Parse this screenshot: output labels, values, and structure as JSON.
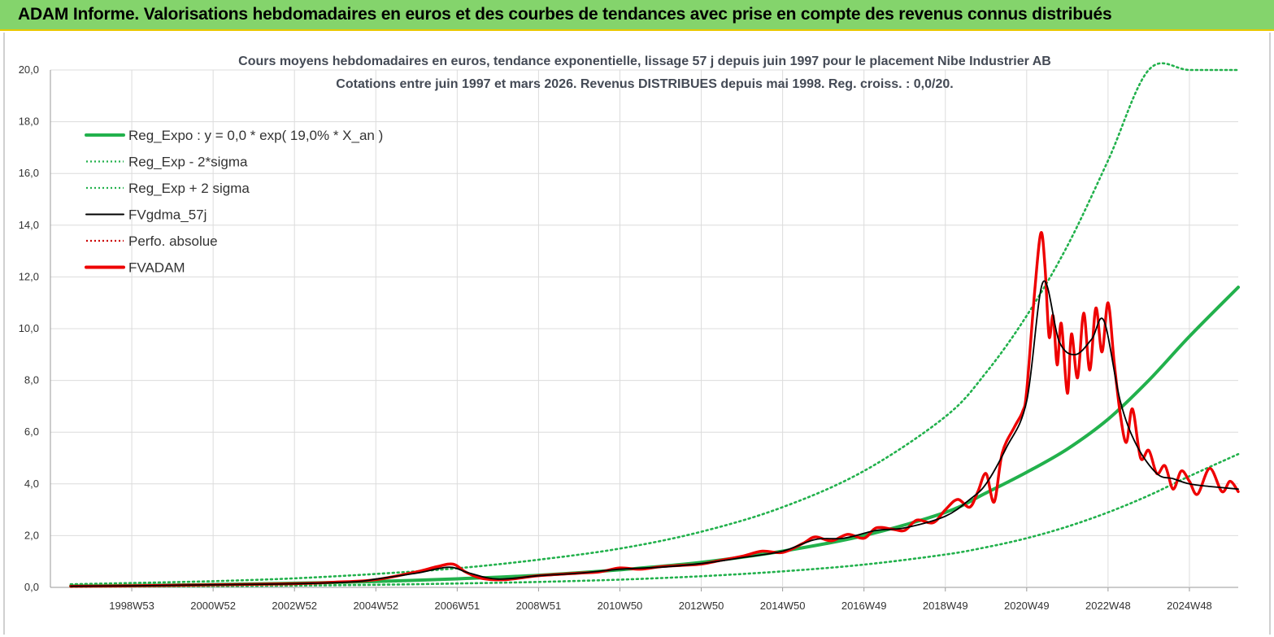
{
  "header": {
    "title": "ADAM Informe. Valorisations hebdomadaires en euros et des courbes de tendances avec prise en compte des revenus connus distribués"
  },
  "chart_data": {
    "type": "line",
    "title_lines": [
      "Cours moyens hebdomadaires en euros, tendance exponentielle, lissage 57 j depuis juin 1997 pour le placement Nibe Industrier AB",
      "Cotations entre juin 1997 et mars 2026. Revenus DISTRIBUES depuis mai 1998. Reg. croiss. : 0,0/20."
    ],
    "xlabel": "",
    "ylabel": "",
    "ylim": [
      0,
      20
    ],
    "xlim": [
      1997.0,
      2026.2
    ],
    "yticks": [
      "0,0",
      "2,0",
      "4,0",
      "6,0",
      "8,0",
      "10,0",
      "12,0",
      "14,0",
      "16,0",
      "18,0",
      "20,0"
    ],
    "xticks": [
      {
        "label": "1998W53",
        "x": 1999.0
      },
      {
        "label": "2000W52",
        "x": 2001.0
      },
      {
        "label": "2002W52",
        "x": 2003.0
      },
      {
        "label": "2004W52",
        "x": 2005.0
      },
      {
        "label": "2006W51",
        "x": 2007.0
      },
      {
        "label": "2008W51",
        "x": 2009.0
      },
      {
        "label": "2010W50",
        "x": 2011.0
      },
      {
        "label": "2012W50",
        "x": 2013.0
      },
      {
        "label": "2014W50",
        "x": 2015.0
      },
      {
        "label": "2016W49",
        "x": 2017.0
      },
      {
        "label": "2018W49",
        "x": 2019.0
      },
      {
        "label": "2020W49",
        "x": 2021.0
      },
      {
        "label": "2022W48",
        "x": 2023.0
      },
      {
        "label": "2024W48",
        "x": 2025.0
      }
    ],
    "grid": true,
    "legend_position": "top-left",
    "legend": [
      {
        "label": "Reg_Expo : y = 0,0 * exp( 19,0% *  X_an )",
        "color": "#22b14c",
        "style": "solid-thick"
      },
      {
        "label": "Reg_Exp - 2*sigma",
        "color": "#22b14c",
        "style": "dotted"
      },
      {
        "label": "Reg_Exp + 2 sigma",
        "color": "#22b14c",
        "style": "dotted"
      },
      {
        "label": "FVgdma_57j",
        "color": "#000000",
        "style": "solid"
      },
      {
        "label": "Perfo. absolue",
        "color": "#cc0000",
        "style": "dotted"
      },
      {
        "label": "FVADAM",
        "color": "#ee0000",
        "style": "solid-thick"
      }
    ],
    "series": [
      {
        "name": "Reg_Expo",
        "x": [
          1997.5,
          1999.0,
          2001.0,
          2003.0,
          2005.0,
          2007.0,
          2009.0,
          2011.0,
          2013.0,
          2015.0,
          2017.0,
          2019.0,
          2020.0,
          2021.0,
          2022.0,
          2023.0,
          2024.0,
          2025.0,
          2026.2
        ],
        "values": [
          0.05,
          0.07,
          0.11,
          0.16,
          0.23,
          0.33,
          0.47,
          0.68,
          0.97,
          1.4,
          2.0,
          2.9,
          3.65,
          4.45,
          5.35,
          6.5,
          8.0,
          9.7,
          11.6
        ]
      },
      {
        "name": "Reg_Exp - 2*sigma",
        "x": [
          1997.5,
          1999.0,
          2001.0,
          2003.0,
          2005.0,
          2007.0,
          2009.0,
          2011.0,
          2013.0,
          2015.0,
          2017.0,
          2019.0,
          2020.0,
          2021.0,
          2022.0,
          2023.0,
          2024.0,
          2025.0,
          2026.2
        ],
        "values": [
          0.02,
          0.03,
          0.05,
          0.07,
          0.1,
          0.15,
          0.21,
          0.3,
          0.43,
          0.62,
          0.88,
          1.27,
          1.55,
          1.9,
          2.35,
          2.9,
          3.55,
          4.3,
          5.15
        ]
      },
      {
        "name": "Reg_Exp + 2 sigma",
        "x": [
          1997.5,
          1999.0,
          2001.0,
          2003.0,
          2005.0,
          2007.0,
          2009.0,
          2011.0,
          2013.0,
          2015.0,
          2017.0,
          2019.0,
          2020.0,
          2021.0,
          2022.0,
          2023.0,
          2024.0,
          2025.0,
          2026.2
        ],
        "values": [
          0.12,
          0.17,
          0.24,
          0.35,
          0.52,
          0.74,
          1.07,
          1.5,
          2.15,
          3.1,
          4.5,
          6.6,
          8.3,
          10.5,
          13.2,
          16.5,
          20.0,
          20.0,
          20.0
        ]
      },
      {
        "name": "FVgdma_57j",
        "x": [
          1997.5,
          1999.0,
          2001.0,
          2003.0,
          2004.5,
          2005.0,
          2006.0,
          2006.8,
          2007.3,
          2008.0,
          2009.0,
          2010.0,
          2011.0,
          2012.0,
          2013.0,
          2014.0,
          2015.0,
          2015.8,
          2016.5,
          2017.3,
          2018.0,
          2019.0,
          2019.6,
          2020.0,
          2020.5,
          2021.0,
          2021.4,
          2021.8,
          2022.2,
          2022.6,
          2022.9,
          2023.3,
          2023.7,
          2024.2,
          2024.6,
          2025.0,
          2025.5,
          2026.2
        ],
        "values": [
          0.04,
          0.06,
          0.1,
          0.14,
          0.22,
          0.32,
          0.55,
          0.78,
          0.55,
          0.32,
          0.45,
          0.55,
          0.7,
          0.78,
          0.92,
          1.15,
          1.4,
          1.85,
          1.9,
          2.2,
          2.3,
          2.75,
          3.4,
          4.0,
          5.4,
          7.2,
          11.8,
          9.5,
          9.0,
          9.6,
          10.3,
          7.2,
          5.5,
          4.4,
          4.2,
          4.0,
          3.9,
          3.8
        ]
      },
      {
        "name": "FVADAM",
        "x": [
          1997.5,
          1999.0,
          2001.0,
          2003.0,
          2004.0,
          2005.0,
          2006.0,
          2006.5,
          2006.9,
          2007.2,
          2007.6,
          2008.2,
          2009.0,
          2010.0,
          2010.5,
          2011.0,
          2011.5,
          2012.0,
          2012.5,
          2013.0,
          2013.5,
          2014.0,
          2014.5,
          2015.0,
          2015.5,
          2015.8,
          2016.2,
          2016.6,
          2017.0,
          2017.3,
          2017.7,
          2018.0,
          2018.3,
          2018.7,
          2019.0,
          2019.3,
          2019.6,
          2019.8,
          2020.0,
          2020.2,
          2020.4,
          2020.7,
          2020.9,
          2021.0,
          2021.2,
          2021.35,
          2021.45,
          2021.55,
          2021.65,
          2021.75,
          2021.85,
          2022.0,
          2022.1,
          2022.25,
          2022.4,
          2022.55,
          2022.7,
          2022.85,
          2023.0,
          2023.15,
          2023.3,
          2023.45,
          2023.6,
          2023.8,
          2024.0,
          2024.2,
          2024.4,
          2024.6,
          2024.8,
          2025.0,
          2025.2,
          2025.5,
          2025.8,
          2026.0,
          2026.2
        ],
        "values": [
          0.04,
          0.06,
          0.1,
          0.14,
          0.2,
          0.3,
          0.6,
          0.8,
          0.9,
          0.6,
          0.35,
          0.3,
          0.45,
          0.55,
          0.6,
          0.75,
          0.7,
          0.8,
          0.85,
          0.9,
          1.05,
          1.2,
          1.4,
          1.35,
          1.7,
          1.95,
          1.8,
          2.05,
          1.9,
          2.3,
          2.25,
          2.2,
          2.6,
          2.5,
          3.0,
          3.4,
          3.1,
          3.7,
          4.4,
          3.3,
          5.2,
          6.2,
          6.8,
          7.6,
          11.5,
          13.7,
          12.4,
          9.7,
          10.5,
          8.6,
          10.2,
          7.5,
          9.8,
          8.1,
          10.6,
          8.4,
          10.8,
          9.1,
          11.0,
          8.7,
          6.7,
          5.6,
          6.9,
          5.0,
          5.3,
          4.4,
          4.7,
          3.8,
          4.5,
          4.1,
          3.6,
          4.6,
          3.7,
          4.1,
          3.7
        ]
      }
    ]
  }
}
